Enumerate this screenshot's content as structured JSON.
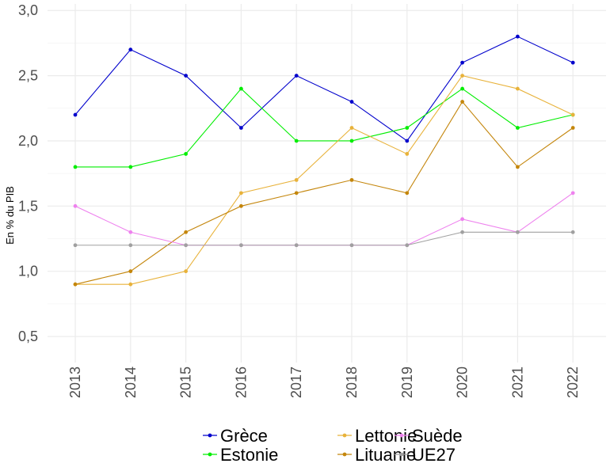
{
  "chart_data": {
    "type": "line",
    "title": "",
    "xlabel": "",
    "ylabel": "En % du PIB",
    "x": [
      "2013",
      "2014",
      "2015",
      "2016",
      "2017",
      "2018",
      "2019",
      "2020",
      "2021",
      "2022"
    ],
    "ylim": [
      0.3,
      3.05
    ],
    "yticks": [
      "0,5",
      "1,0",
      "1,5",
      "2,0",
      "2,5",
      "3,0"
    ],
    "grid": true,
    "legend_position": "bottom",
    "series": [
      {
        "name": "Grèce",
        "color": "#0000cc",
        "values": [
          2.2,
          2.7,
          2.5,
          2.1,
          2.5,
          2.3,
          2.0,
          2.6,
          2.8,
          2.6
        ]
      },
      {
        "name": "Estonie",
        "color": "#00ee00",
        "values": [
          1.8,
          1.8,
          1.9,
          2.4,
          2.0,
          2.0,
          2.1,
          2.4,
          2.1,
          2.2
        ]
      },
      {
        "name": "Lettonie",
        "color": "#e8b23a",
        "values": [
          0.9,
          0.9,
          1.0,
          1.6,
          1.7,
          2.1,
          1.9,
          2.5,
          2.4,
          2.2
        ]
      },
      {
        "name": "Lituanie",
        "color": "#c4860c",
        "values": [
          0.9,
          1.0,
          1.3,
          1.5,
          1.6,
          1.7,
          1.6,
          2.3,
          1.8,
          2.1
        ]
      },
      {
        "name": "Suède",
        "color": "#ee82ee",
        "values": [
          1.5,
          1.3,
          1.2,
          1.2,
          1.2,
          1.2,
          1.2,
          1.4,
          1.3,
          1.6
        ]
      },
      {
        "name": "UE27",
        "color": "#a0a0a0",
        "values": [
          1.2,
          1.2,
          1.2,
          1.2,
          1.2,
          1.2,
          1.2,
          1.3,
          1.3,
          1.3
        ]
      }
    ]
  }
}
